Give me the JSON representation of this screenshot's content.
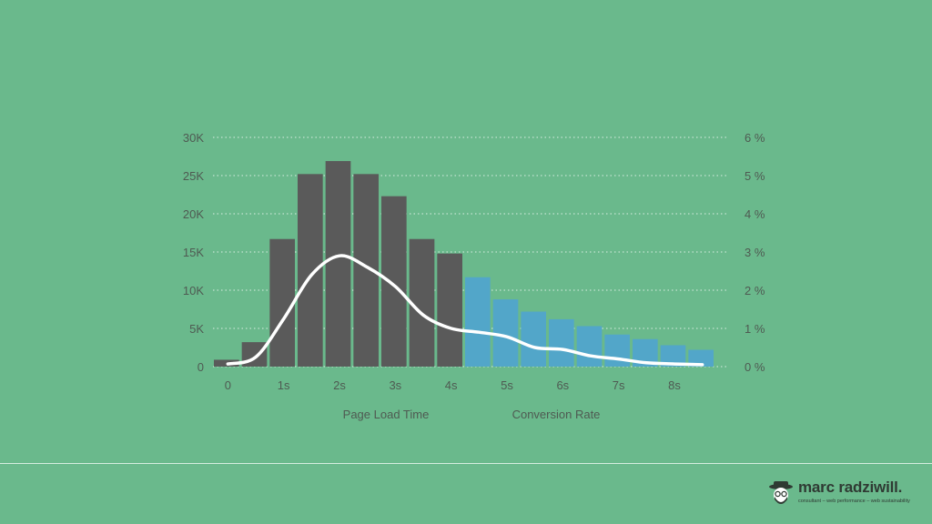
{
  "chart_data": {
    "type": "bar",
    "y_left": {
      "ticks": [
        "0",
        "5K",
        "10K",
        "15K",
        "20K",
        "25K",
        "30K"
      ],
      "range": [
        0,
        30000
      ]
    },
    "y_right": {
      "ticks": [
        "0 %",
        "1 %",
        "2 %",
        "3 %",
        "4 %",
        "5 %",
        "6 %"
      ],
      "range": [
        0,
        6
      ]
    },
    "x_ticks": [
      "0",
      "1s",
      "2s",
      "3s",
      "4s",
      "5s",
      "6s",
      "7s",
      "8s"
    ],
    "series": [
      {
        "name": "Page Load Time",
        "type": "bar",
        "values": [
          900,
          3200,
          16700,
          25200,
          26900,
          25200,
          22300,
          16700,
          14800,
          11700,
          8800,
          7200,
          6200,
          5300,
          4200,
          3600,
          2800,
          2200
        ]
      },
      {
        "name": "Conversion Rate",
        "type": "line",
        "values": [
          0.07,
          0.25,
          1.25,
          2.4,
          2.9,
          2.6,
          2.1,
          1.35,
          1.0,
          0.9,
          0.78,
          0.5,
          0.45,
          0.28,
          0.2,
          0.1,
          0.07,
          0.05
        ]
      }
    ],
    "bar_colors": [
      "#5a5a5a",
      "#5a5a5a",
      "#5a5a5a",
      "#5a5a5a",
      "#5a5a5a",
      "#5a5a5a",
      "#5a5a5a",
      "#5a5a5a",
      "#5a5a5a",
      "#52a6c9",
      "#52a6c9",
      "#52a6c9",
      "#52a6c9",
      "#52a6c9",
      "#52a6c9",
      "#52a6c9",
      "#52a6c9",
      "#52a6c9"
    ],
    "line_color": "#ffffff",
    "grid": true,
    "legend": {
      "position": "bottom",
      "items": [
        "Page Load Time",
        "Conversion Rate"
      ]
    }
  },
  "brand": {
    "name": "marc radziwill.",
    "tagline": "consultant – web performance – web sustainability",
    "logo_icon": "bearded-face-with-hat-icon"
  }
}
